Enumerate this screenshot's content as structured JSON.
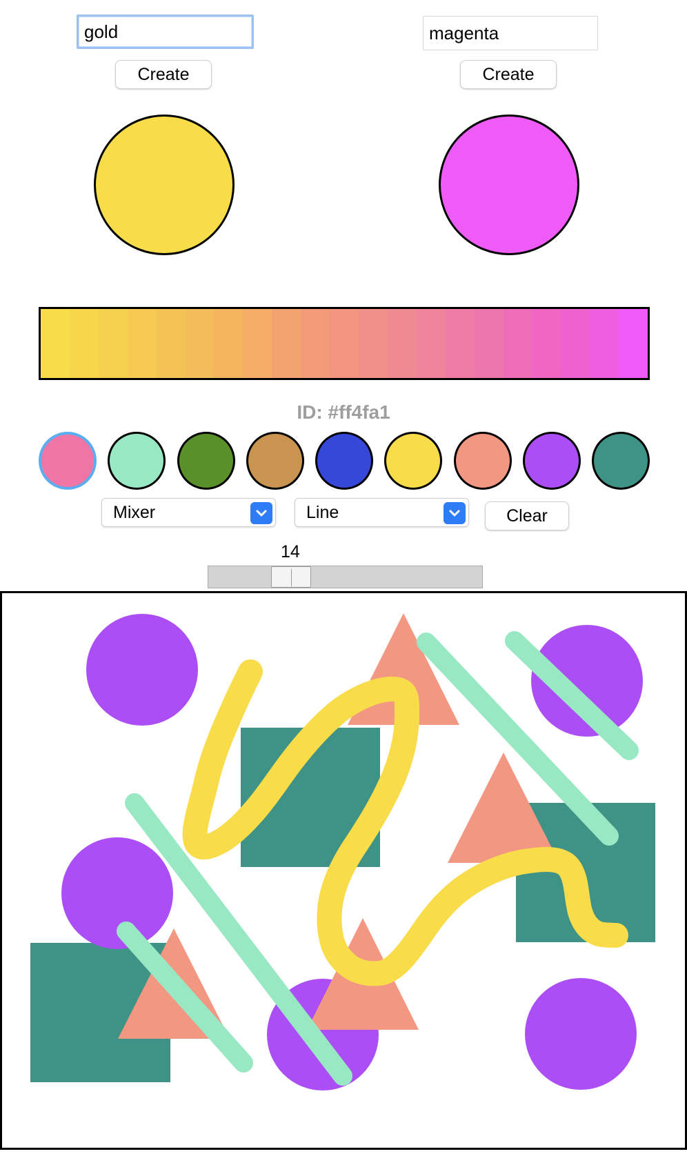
{
  "color_a": {
    "input_value": "gold",
    "create_label": "Create",
    "hex": "#f9dc4a"
  },
  "color_b": {
    "input_value": "magenta",
    "create_label": "Create",
    "hex": "#ef5bf7"
  },
  "gradient": {
    "colors": [
      "#f9dc4a",
      "#f8d64c",
      "#f7cf4f",
      "#f6c953",
      "#f5c256",
      "#f5bc5a",
      "#f5b560",
      "#f5ad67",
      "#f3a36f",
      "#f39b78",
      "#f29480",
      "#f18f89",
      "#f08a92",
      "#f0849b",
      "#ef7ca4",
      "#ef75ae",
      "#ef6db8",
      "#ef66c3",
      "#ef61cf",
      "#ef5de0",
      "#ef5bf7"
    ]
  },
  "selected_id": {
    "prefix": "ID: ",
    "hex": "#ff4fa1",
    "text": "ID: #ff4fa1"
  },
  "palette": {
    "selected_index": 0,
    "colors": [
      "#f075a7",
      "#98e8c4",
      "#5a902a",
      "#c9944f",
      "#3548d8",
      "#f9dc4a",
      "#f29882",
      "#ac4ef5",
      "#3e9286"
    ]
  },
  "tool_mode": {
    "selected": "Mixer"
  },
  "stroke_type": {
    "selected": "Line"
  },
  "clear_label": "Clear",
  "brush_size": {
    "value": 14,
    "display": "14"
  },
  "canvas": {
    "background": "#ffffff",
    "shape_colors": {
      "circle": "#ac4ef5",
      "square": "#3e9286",
      "triangle": "#f29882",
      "line": "#98e8c4",
      "freehand": "#f9dc4a"
    }
  }
}
